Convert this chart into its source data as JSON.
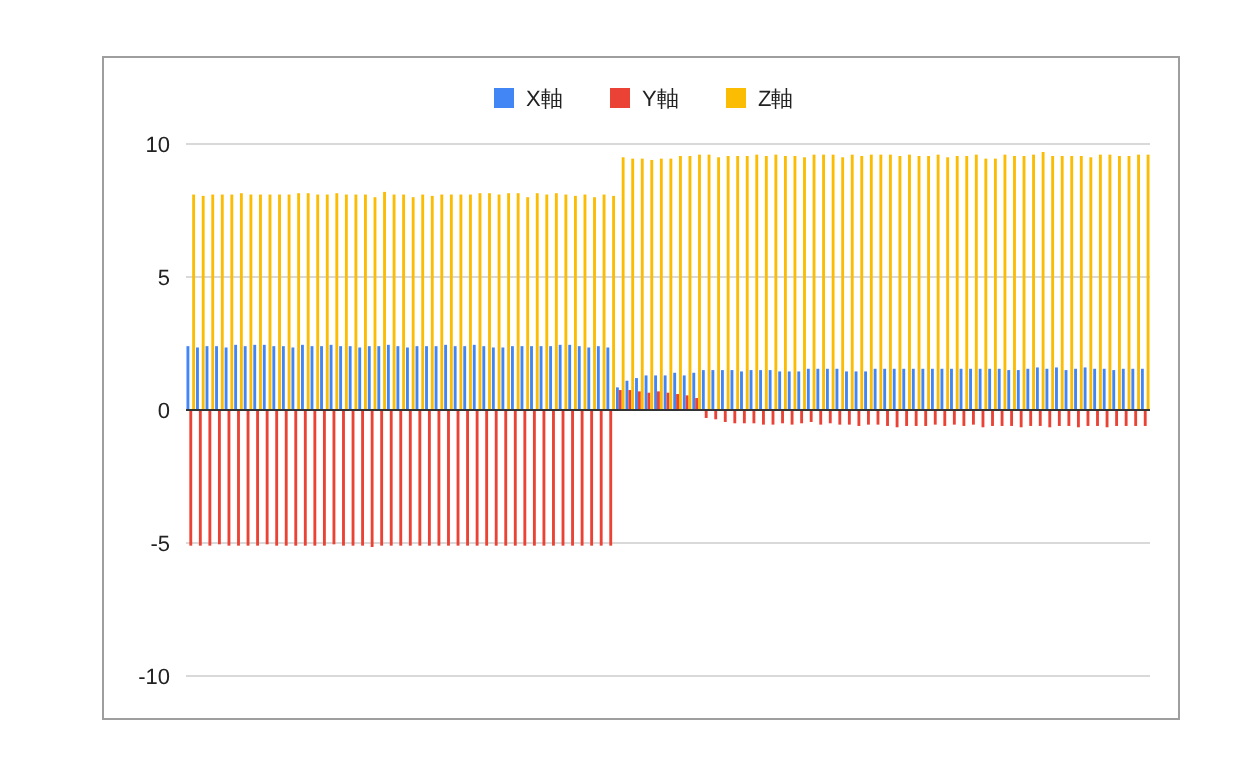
{
  "chart_data": {
    "type": "bar",
    "categories": [
      null,
      null,
      null,
      null,
      null,
      null,
      null,
      null,
      null,
      null,
      null,
      null,
      null,
      null,
      null,
      null,
      null,
      null,
      null,
      null,
      null,
      null,
      null,
      null,
      null,
      null,
      null,
      null,
      null,
      null,
      null,
      null,
      null,
      null,
      null,
      null,
      null,
      null,
      null,
      null,
      null,
      null,
      null,
      null,
      null,
      null,
      null,
      null,
      null,
      null,
      null,
      null,
      null,
      null,
      null,
      null,
      null,
      null,
      null,
      null,
      null,
      null,
      null,
      null,
      null,
      null,
      null,
      null,
      null,
      null,
      null,
      null,
      null,
      null,
      null,
      null,
      null,
      null,
      null,
      null,
      null,
      null,
      null,
      null,
      null,
      null,
      null,
      null,
      null,
      null,
      null,
      null,
      null,
      null,
      null,
      null,
      null,
      null,
      null,
      null,
      null
    ],
    "series": [
      {
        "name": "X軸",
        "color": "#4285f4",
        "values": [
          2.4,
          2.35,
          2.4,
          2.4,
          2.35,
          2.45,
          2.4,
          2.45,
          2.45,
          2.4,
          2.4,
          2.35,
          2.45,
          2.4,
          2.4,
          2.45,
          2.4,
          2.4,
          2.35,
          2.4,
          2.4,
          2.45,
          2.4,
          2.35,
          2.4,
          2.4,
          2.4,
          2.45,
          2.4,
          2.4,
          2.45,
          2.4,
          2.35,
          2.35,
          2.4,
          2.4,
          2.4,
          2.4,
          2.4,
          2.45,
          2.45,
          2.4,
          2.35,
          2.4,
          2.35,
          0.85,
          1.1,
          1.2,
          1.3,
          1.3,
          1.3,
          1.4,
          1.3,
          1.4,
          1.5,
          1.5,
          1.5,
          1.5,
          1.45,
          1.5,
          1.5,
          1.5,
          1.45,
          1.45,
          1.45,
          1.55,
          1.55,
          1.55,
          1.55,
          1.45,
          1.45,
          1.45,
          1.55,
          1.55,
          1.55,
          1.55,
          1.55,
          1.55,
          1.55,
          1.55,
          1.55,
          1.55,
          1.55,
          1.55,
          1.55,
          1.55,
          1.5,
          1.5,
          1.55,
          1.6,
          1.55,
          1.6,
          1.5,
          1.55,
          1.6,
          1.55,
          1.55,
          1.5,
          1.55,
          1.55,
          1.55
        ]
      },
      {
        "name": "Y軸",
        "color": "#ea4335",
        "values": [
          -5.1,
          -5.1,
          -5.1,
          -5.05,
          -5.1,
          -5.1,
          -5.1,
          -5.1,
          -5.05,
          -5.1,
          -5.1,
          -5.1,
          -5.1,
          -5.1,
          -5.1,
          -5.05,
          -5.1,
          -5.1,
          -5.1,
          -5.15,
          -5.1,
          -5.1,
          -5.1,
          -5.1,
          -5.1,
          -5.1,
          -5.1,
          -5.1,
          -5.1,
          -5.1,
          -5.1,
          -5.1,
          -5.1,
          -5.1,
          -5.1,
          -5.1,
          -5.1,
          -5.1,
          -5.1,
          -5.1,
          -5.1,
          -5.1,
          -5.1,
          -5.1,
          -5.1,
          0.75,
          0.75,
          0.7,
          0.65,
          0.7,
          0.65,
          0.6,
          0.55,
          0.45,
          -0.3,
          -0.35,
          -0.45,
          -0.5,
          -0.5,
          -0.5,
          -0.55,
          -0.55,
          -0.5,
          -0.55,
          -0.5,
          -0.45,
          -0.55,
          -0.5,
          -0.55,
          -0.55,
          -0.6,
          -0.55,
          -0.55,
          -0.6,
          -0.65,
          -0.6,
          -0.6,
          -0.6,
          -0.55,
          -0.6,
          -0.55,
          -0.6,
          -0.55,
          -0.65,
          -0.6,
          -0.6,
          -0.6,
          -0.65,
          -0.6,
          -0.6,
          -0.65,
          -0.6,
          -0.6,
          -0.65,
          -0.6,
          -0.6,
          -0.65,
          -0.6,
          -0.6,
          -0.6,
          -0.6
        ]
      },
      {
        "name": "Z軸",
        "color": "#fbbc04",
        "values": [
          8.1,
          8.05,
          8.1,
          8.1,
          8.1,
          8.15,
          8.1,
          8.1,
          8.1,
          8.1,
          8.1,
          8.15,
          8.15,
          8.1,
          8.1,
          8.15,
          8.1,
          8.1,
          8.1,
          8.0,
          8.2,
          8.1,
          8.1,
          8.0,
          8.1,
          8.05,
          8.1,
          8.1,
          8.1,
          8.1,
          8.15,
          8.15,
          8.1,
          8.15,
          8.15,
          8.0,
          8.15,
          8.1,
          8.15,
          8.1,
          8.05,
          8.1,
          8.0,
          8.1,
          8.05,
          9.5,
          9.45,
          9.45,
          9.4,
          9.45,
          9.45,
          9.55,
          9.55,
          9.6,
          9.6,
          9.5,
          9.55,
          9.55,
          9.55,
          9.6,
          9.55,
          9.6,
          9.55,
          9.55,
          9.5,
          9.6,
          9.6,
          9.6,
          9.5,
          9.6,
          9.55,
          9.6,
          9.6,
          9.6,
          9.55,
          9.6,
          9.55,
          9.55,
          9.6,
          9.5,
          9.55,
          9.55,
          9.6,
          9.45,
          9.45,
          9.6,
          9.55,
          9.55,
          9.6,
          9.7,
          9.55,
          9.55,
          9.55,
          9.55,
          9.5,
          9.6,
          9.6,
          9.55,
          9.55,
          9.6,
          9.6
        ]
      }
    ],
    "ylim": [
      -10,
      10
    ],
    "yticks": [
      -10,
      -5,
      0,
      5,
      10
    ],
    "grid": "y",
    "legend": "top"
  }
}
